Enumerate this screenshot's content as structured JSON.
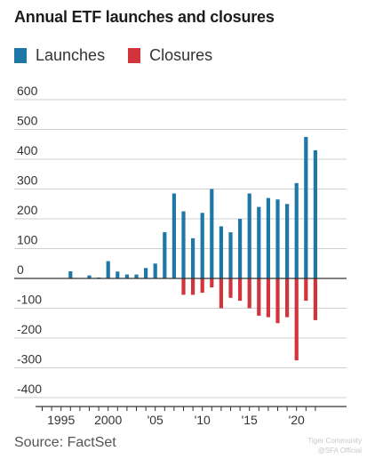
{
  "header": {
    "title": "Annual ETF launches and closures"
  },
  "legend": {
    "launches": "Launches",
    "closures": "Closures"
  },
  "footer": {
    "source": "Source: FactSet",
    "watermark1": "Tiger Community",
    "watermark2": "@SFA Official"
  },
  "colors": {
    "launches": "#1f77a8",
    "closures": "#d2343c",
    "grid": "#cfcfcf",
    "axis": "#333333"
  },
  "chart_data": {
    "type": "bar",
    "title": "Annual ETF launches and closures",
    "xlabel": "",
    "ylabel": "",
    "ylim": [
      -400,
      600
    ],
    "yticks": [
      600,
      500,
      400,
      300,
      200,
      100,
      0,
      -100,
      -200,
      -300,
      -400
    ],
    "x": [
      1993,
      1994,
      1995,
      1996,
      1997,
      1998,
      1999,
      2000,
      2001,
      2002,
      2003,
      2004,
      2005,
      2006,
      2007,
      2008,
      2009,
      2010,
      2011,
      2012,
      2013,
      2014,
      2015,
      2016,
      2017,
      2018,
      2019,
      2020,
      2021,
      2022
    ],
    "xtick_labels": [
      {
        "year": 1995,
        "label": "1995"
      },
      {
        "year": 2000,
        "label": "2000"
      },
      {
        "year": 2005,
        "label": "'05"
      },
      {
        "year": 2010,
        "label": "'10"
      },
      {
        "year": 2015,
        "label": "'15"
      },
      {
        "year": 2020,
        "label": "'20"
      }
    ],
    "series": [
      {
        "name": "Launches",
        "values": [
          0,
          0,
          0,
          24,
          0,
          10,
          3,
          58,
          23,
          13,
          13,
          35,
          50,
          155,
          285,
          225,
          135,
          220,
          300,
          175,
          155,
          200,
          285,
          240,
          270,
          265,
          250,
          320,
          475,
          430
        ]
      },
      {
        "name": "Closures",
        "values": [
          0,
          0,
          0,
          0,
          0,
          0,
          0,
          0,
          0,
          0,
          0,
          0,
          0,
          0,
          0,
          -55,
          -55,
          -48,
          -30,
          -100,
          -65,
          -75,
          -100,
          -125,
          -130,
          -150,
          -130,
          -275,
          -75,
          -140
        ]
      }
    ],
    "grid": true,
    "legend_position": "top-left"
  }
}
